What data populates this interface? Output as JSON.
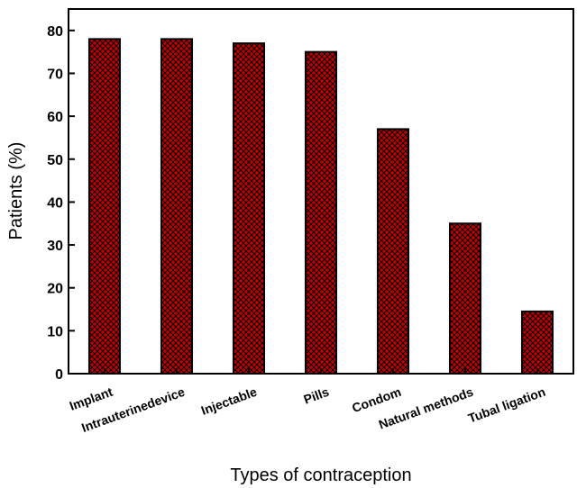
{
  "chart_data": {
    "type": "bar",
    "categories": [
      "Implant",
      "Intrauterinedevice",
      "Injectable",
      "Pills",
      "Condom",
      "Natural methods",
      "Tubal ligation"
    ],
    "values": [
      78,
      78,
      77,
      75,
      57,
      35,
      14.5
    ],
    "title": "",
    "xlabel": "Types of contraception",
    "ylabel": "Patients (%)",
    "ylim": [
      0,
      85
    ],
    "yticks": [
      0,
      10,
      20,
      30,
      40,
      50,
      60,
      70,
      80
    ],
    "grid": false,
    "legend": "none",
    "bar_color": "#c00000",
    "bar_pattern": "crosshatch"
  }
}
